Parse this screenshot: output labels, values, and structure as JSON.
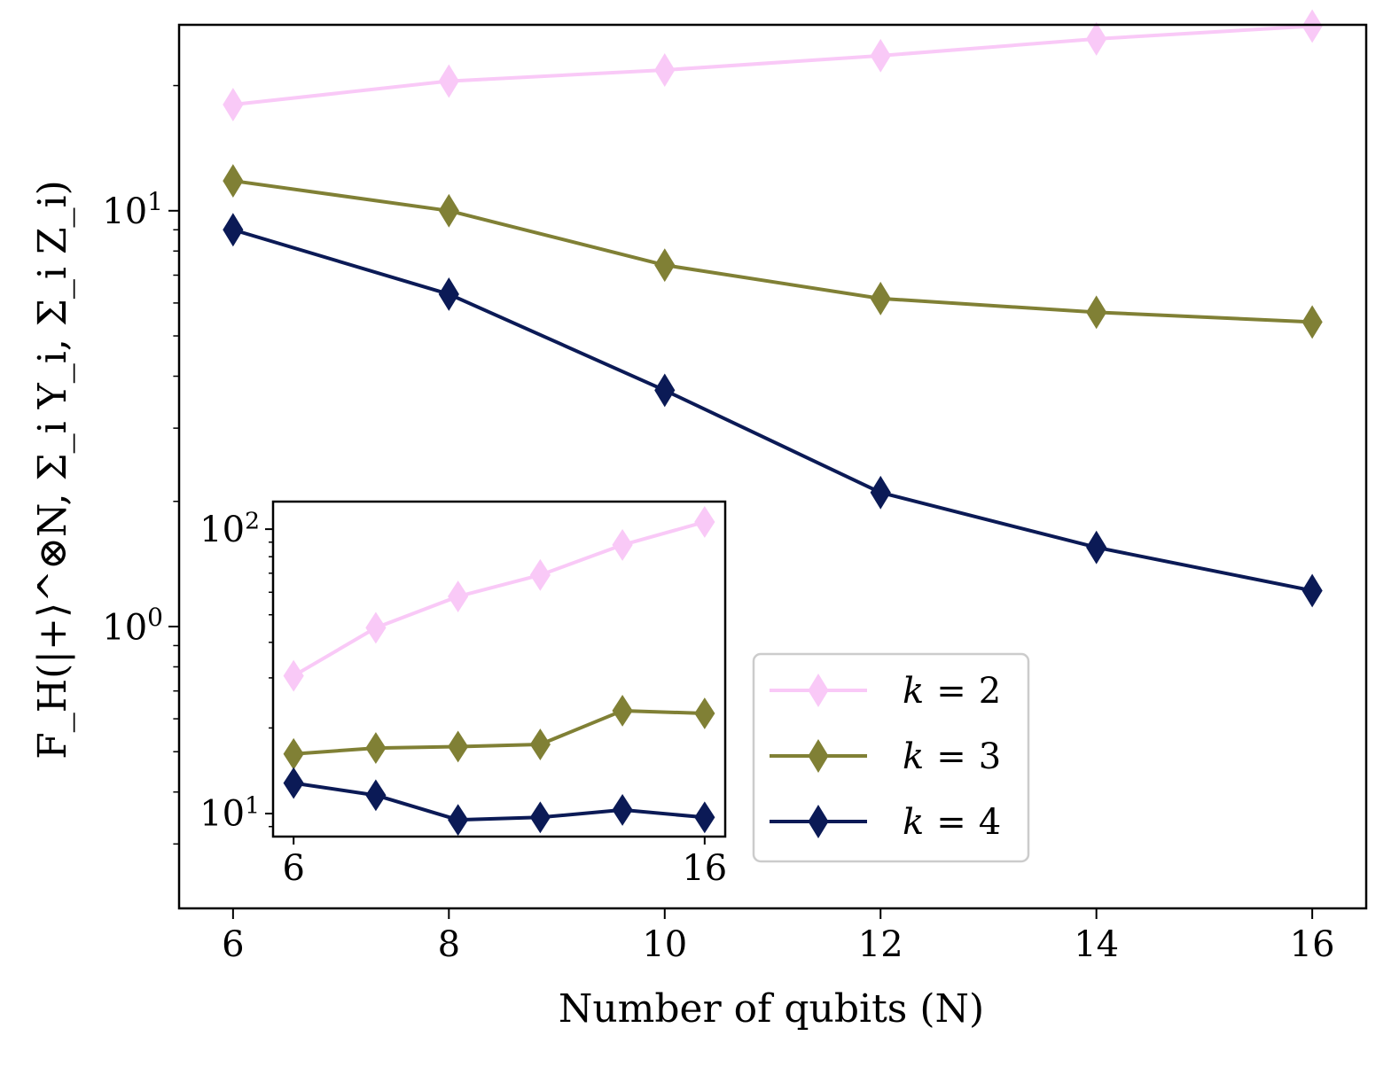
{
  "chart_data": [
    {
      "type": "line",
      "scale_y": "log",
      "xlabel": "Number of qubits (N)",
      "ylabel": "F_H(|+⟩^⊗N, Σ_i Y_i, Σ_i Z_i)",
      "x": [
        6,
        8,
        10,
        12,
        14,
        16
      ],
      "xticks": [
        "6",
        "8",
        "10",
        "12",
        "14",
        "16"
      ],
      "xlim": [
        5.5,
        16.5
      ],
      "ylim": [
        0.21,
        28
      ],
      "yticks": [
        {
          "value": 1,
          "base": "10",
          "exp": "0"
        },
        {
          "value": 10,
          "base": "10",
          "exp": "1"
        }
      ],
      "legend_position": "lower-right",
      "series": [
        {
          "name": "k = 2",
          "k": "k",
          "eq": "=",
          "num": "2",
          "color": "#f9c9f7",
          "values": [
            18.0,
            20.5,
            21.8,
            23.6,
            25.9,
            27.8
          ]
        },
        {
          "name": "k = 3",
          "k": "k",
          "eq": "=",
          "num": "3",
          "color": "#808035",
          "values": [
            11.8,
            10.0,
            7.4,
            6.15,
            5.7,
            5.4
          ]
        },
        {
          "name": "k = 4",
          "k": "k",
          "eq": "=",
          "num": "4",
          "color": "#0b1a56",
          "values": [
            9.0,
            6.3,
            3.7,
            2.1,
            1.55,
            1.22
          ]
        }
      ]
    },
    {
      "type": "line",
      "scale_y": "log",
      "inset": true,
      "x": [
        6,
        8,
        10,
        12,
        14,
        16
      ],
      "xticks": [
        "6",
        "16"
      ],
      "xtick_values": [
        6,
        16
      ],
      "xlim": [
        5.5,
        16.5
      ],
      "ylim": [
        8.3,
        125
      ],
      "yticks": [
        {
          "value": 10,
          "base": "10",
          "exp": "1"
        },
        {
          "value": 100,
          "base": "10",
          "exp": "2"
        }
      ],
      "series": [
        {
          "name": "k = 2",
          "color": "#f9c9f7",
          "values": [
            30.5,
            45.0,
            58.0,
            69.0,
            88.0,
            106.0
          ]
        },
        {
          "name": "k = 3",
          "color": "#808035",
          "values": [
            16.2,
            17.0,
            17.2,
            17.5,
            23.0,
            22.5
          ]
        },
        {
          "name": "k = 4",
          "color": "#0b1a56",
          "values": [
            12.8,
            11.6,
            9.5,
            9.7,
            10.3,
            9.7
          ]
        }
      ]
    }
  ]
}
